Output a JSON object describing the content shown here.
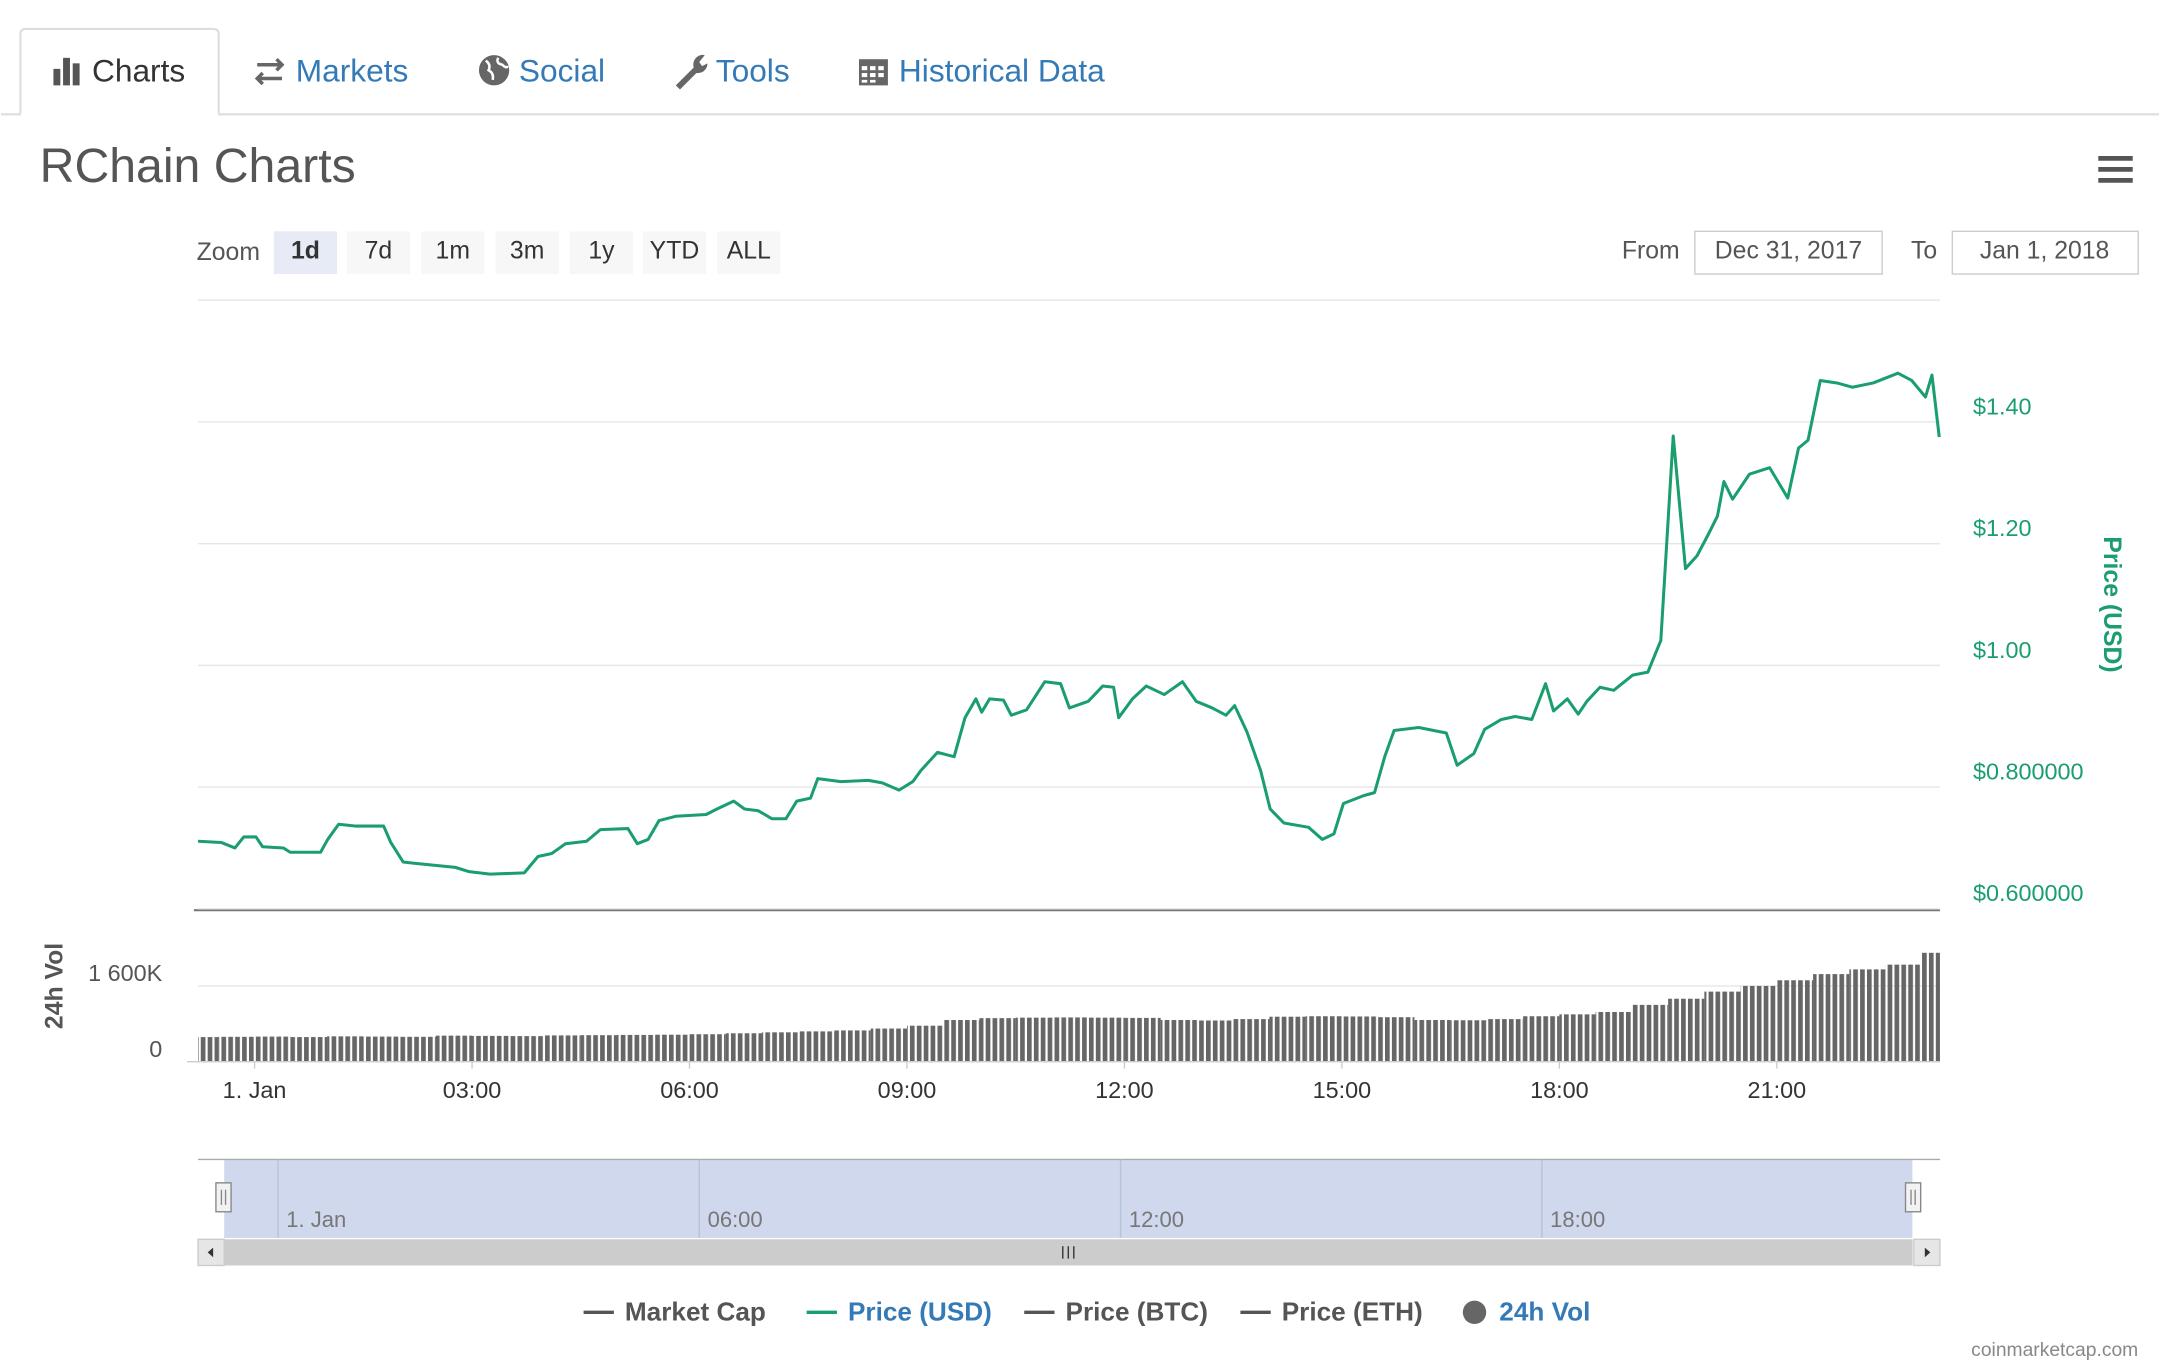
{
  "tabs": {
    "items": [
      "Charts",
      "Markets",
      "Social",
      "Tools",
      "Historical Data"
    ],
    "active": 0
  },
  "zoom": {
    "label": "Zoom",
    "buttons": [
      "1d",
      "7d",
      "1m",
      "3m",
      "1y",
      "YTD",
      "ALL"
    ],
    "selected": 0
  },
  "range": {
    "from_label": "From",
    "from": "Dec 31, 2017",
    "to_label": "To",
    "to": "Jan 1, 2018"
  },
  "chart_data": [
    {
      "type": "line",
      "title": "RChain Charts",
      "y_label": "Price (USD)",
      "x": [
        -0.78,
        -0.46,
        -0.27,
        -0.15,
        0.02,
        0.11,
        0.4,
        0.49,
        0.91,
        1.01,
        1.16,
        1.4,
        1.78,
        1.88,
        2.05,
        2.2,
        2.77,
        2.96,
        3.25,
        3.72,
        3.91,
        4.1,
        4.29,
        4.58,
        4.77,
        5.15,
        5.28,
        5.43,
        5.58,
        5.81,
        6.23,
        6.38,
        6.61,
        6.76,
        6.95,
        7.14,
        7.33,
        7.48,
        7.67,
        7.77,
        8.09,
        8.47,
        8.66,
        8.89,
        9.08,
        9.19,
        9.42,
        9.65,
        9.8,
        9.95,
        10.03,
        10.14,
        10.33,
        10.44,
        10.65,
        10.9,
        11.12,
        11.24,
        11.5,
        11.7,
        11.85,
        11.92,
        12.11,
        12.3,
        12.55,
        12.8,
        12.99,
        13.21,
        13.4,
        13.52,
        13.69,
        13.88,
        14.01,
        14.2,
        14.54,
        14.73,
        14.89,
        15.02,
        15.3,
        15.45,
        15.59,
        15.72,
        16.06,
        16.44,
        16.59,
        16.82,
        16.97,
        17.2,
        17.39,
        17.62,
        17.81,
        17.92,
        18.11,
        18.26,
        18.38,
        18.56,
        18.75,
        19.01,
        19.22,
        19.4,
        19.57,
        19.74,
        19.9,
        20.05,
        20.18,
        20.27,
        20.39,
        20.62,
        20.9,
        21.15,
        21.3,
        21.43,
        21.6,
        21.83,
        22.04,
        22.33,
        22.67,
        22.86,
        23.05,
        23.14,
        23.24
      ],
      "series": [
        {
          "name": "Price (USD)",
          "color": "#1a9e6e",
          "values": [
            0.711,
            0.709,
            0.7,
            0.718,
            0.718,
            0.702,
            0.7,
            0.693,
            0.693,
            0.714,
            0.739,
            0.736,
            0.736,
            0.709,
            0.677,
            0.675,
            0.668,
            0.661,
            0.657,
            0.659,
            0.686,
            0.691,
            0.707,
            0.711,
            0.73,
            0.732,
            0.707,
            0.714,
            0.745,
            0.752,
            0.755,
            0.764,
            0.777,
            0.764,
            0.761,
            0.748,
            0.748,
            0.777,
            0.782,
            0.814,
            0.809,
            0.811,
            0.807,
            0.795,
            0.809,
            0.827,
            0.857,
            0.85,
            0.914,
            0.945,
            0.923,
            0.945,
            0.943,
            0.918,
            0.927,
            0.973,
            0.97,
            0.93,
            0.941,
            0.966,
            0.964,
            0.914,
            0.945,
            0.966,
            0.952,
            0.973,
            0.941,
            0.93,
            0.918,
            0.934,
            0.891,
            0.827,
            0.764,
            0.741,
            0.734,
            0.714,
            0.723,
            0.773,
            0.786,
            0.791,
            0.85,
            0.893,
            0.898,
            0.889,
            0.836,
            0.855,
            0.895,
            0.911,
            0.916,
            0.911,
            0.97,
            0.925,
            0.945,
            0.92,
            0.941,
            0.964,
            0.959,
            0.984,
            0.989,
            1.041,
            1.377,
            1.159,
            1.18,
            1.214,
            1.245,
            1.302,
            1.273,
            1.314,
            1.325,
            1.275,
            1.357,
            1.37,
            1.468,
            1.464,
            1.457,
            1.464,
            1.48,
            1.468,
            1.441,
            1.477,
            1.375
          ]
        }
      ],
      "xlim": [
        -0.78,
        23.25
      ],
      "xticks": [
        {
          "value": 0,
          "label": "1. Jan"
        },
        {
          "value": 3,
          "label": "03:00"
        },
        {
          "value": 6,
          "label": "06:00"
        },
        {
          "value": 9,
          "label": "09:00"
        },
        {
          "value": 12,
          "label": "12:00"
        },
        {
          "value": 15,
          "label": "15:00"
        },
        {
          "value": 18,
          "label": "18:00"
        },
        {
          "value": 21,
          "label": "21:00"
        }
      ],
      "ylim": [
        0.6,
        1.6
      ],
      "yticks": [
        {
          "value": 0.6,
          "label": "$0.600000"
        },
        {
          "value": 0.8,
          "label": "$0.800000"
        },
        {
          "value": 1.0,
          "label": "$1.00"
        },
        {
          "value": 1.2,
          "label": "$1.20"
        },
        {
          "value": 1.4,
          "label": "$1.40"
        }
      ],
      "grid": true
    },
    {
      "type": "bar",
      "y_label": "24h Vol",
      "x": [
        -0.75,
        -0.25,
        0.25,
        0.75,
        1.25,
        1.75,
        2.25,
        2.75,
        3.25,
        3.75,
        4.25,
        4.75,
        5.25,
        5.75,
        6.25,
        6.75,
        7.25,
        7.75,
        8.25,
        8.75,
        9.25,
        9.75,
        10.25,
        10.75,
        11.25,
        11.75,
        12.25,
        12.75,
        13.25,
        13.75,
        14.25,
        14.75,
        15.25,
        15.75,
        16.25,
        16.75,
        17.25,
        17.75,
        18.25,
        18.75,
        19.25,
        19.75,
        20.25,
        20.75,
        21.25,
        21.75,
        22.25,
        22.75,
        23.25
      ],
      "series": [
        {
          "name": "24h Vol",
          "color": "#666666",
          "values": [
            520000,
            525000,
            530000,
            520000,
            535000,
            530000,
            525000,
            550000,
            545000,
            540000,
            555000,
            560000,
            565000,
            570000,
            580000,
            600000,
            620000,
            640000,
            660000,
            700000,
            760000,
            880000,
            920000,
            930000,
            935000,
            930000,
            925000,
            880000,
            870000,
            900000,
            950000,
            960000,
            955000,
            940000,
            880000,
            875000,
            900000,
            960000,
            1000000,
            1050000,
            1200000,
            1330000,
            1480000,
            1600000,
            1720000,
            1850000,
            1950000,
            2050000,
            2300000
          ]
        }
      ],
      "xlim": [
        -0.78,
        23.25
      ],
      "ylim": [
        0,
        3200000
      ],
      "yticks": [
        0,
        {
          "value": 1600000,
          "label": "1 600K"
        }
      ],
      "grid": true
    }
  ],
  "hidden_series": [
    {
      "name": "Market Cap"
    },
    {
      "name": "Price (BTC)"
    },
    {
      "name": "Price (ETH)"
    }
  ],
  "navigator": {
    "xlim": [
      -1.14,
      23.67
    ],
    "xticks": [
      {
        "value": 0,
        "label": "1. Jan"
      },
      {
        "value": 6,
        "label": "06:00"
      },
      {
        "value": 12,
        "label": "12:00"
      },
      {
        "value": 18,
        "label": "18:00"
      }
    ]
  },
  "credit": "coinmarketcap.com"
}
